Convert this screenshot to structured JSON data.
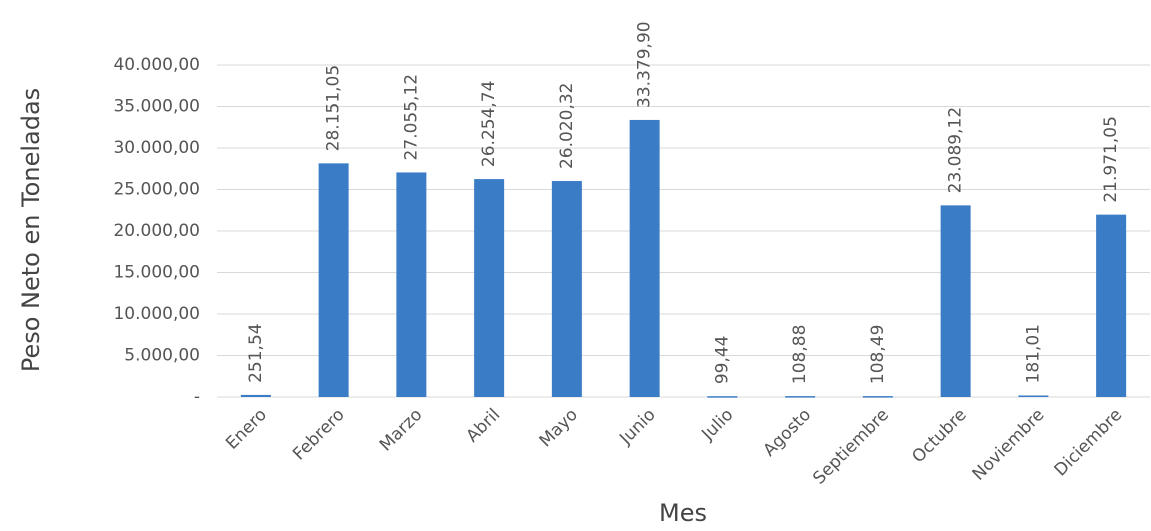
{
  "chart_data": {
    "type": "bar",
    "x_label": "Mes",
    "y_label": "Peso Neto en Toneladas",
    "categories": [
      "Enero",
      "Febrero",
      "Marzo",
      "Abril",
      "Mayo",
      "Junio",
      "Julio",
      "Agosto",
      "Septiembre",
      "Octubre",
      "Noviembre",
      "Diciembre"
    ],
    "values": [
      251.54,
      28151.05,
      27055.12,
      26254.74,
      26020.32,
      33379.9,
      99.44,
      108.88,
      108.49,
      23089.12,
      181.01,
      21971.05
    ],
    "value_labels": [
      "251,54",
      "28.151,05",
      "27.055,12",
      "26.254,74",
      "26.020,32",
      "33.379,90",
      "99,44",
      "108,88",
      "108,49",
      "23.089,12",
      "181,01",
      "21.971,05"
    ],
    "color": "#3b7cc6",
    "ylim": [
      0,
      40000
    ],
    "yticks": [
      {
        "value": 0,
        "label": "-"
      },
      {
        "value": 5000,
        "label": "5.000,00"
      },
      {
        "value": 10000,
        "label": "10.000,00"
      },
      {
        "value": 15000,
        "label": "15.000,00"
      },
      {
        "value": 20000,
        "label": "20.000,00"
      },
      {
        "value": 25000,
        "label": "25.000,00"
      },
      {
        "value": 30000,
        "label": "30.000,00"
      },
      {
        "value": 35000,
        "label": "35.000,00"
      },
      {
        "value": 40000,
        "label": "40.000,00"
      }
    ],
    "grid": true
  }
}
